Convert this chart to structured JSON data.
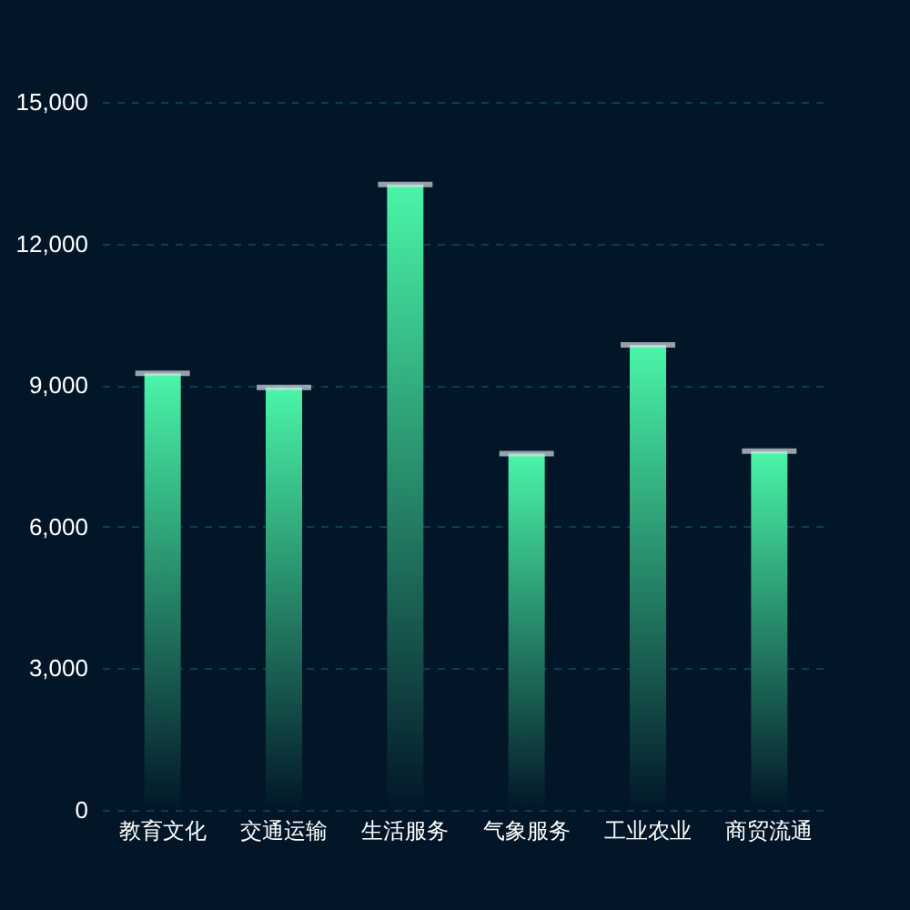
{
  "chart_data": {
    "type": "bar",
    "categories": [
      "教育文化",
      "交通运输",
      "生活服务",
      "气象服务",
      "工业农业",
      "商贸流通"
    ],
    "values": [
      9250,
      8950,
      13250,
      7550,
      9850,
      7600
    ],
    "color": "#4af5a8",
    "ylim": [
      0,
      15000
    ],
    "yticks": [
      {
        "value": 0,
        "label": "0"
      },
      {
        "value": 3000,
        "label": "3,000"
      },
      {
        "value": 6000,
        "label": "6,000"
      },
      {
        "value": 9000,
        "label": "9,000"
      },
      {
        "value": 12000,
        "label": "12,000"
      },
      {
        "value": 15000,
        "label": "15,000"
      }
    ],
    "grid": true
  }
}
